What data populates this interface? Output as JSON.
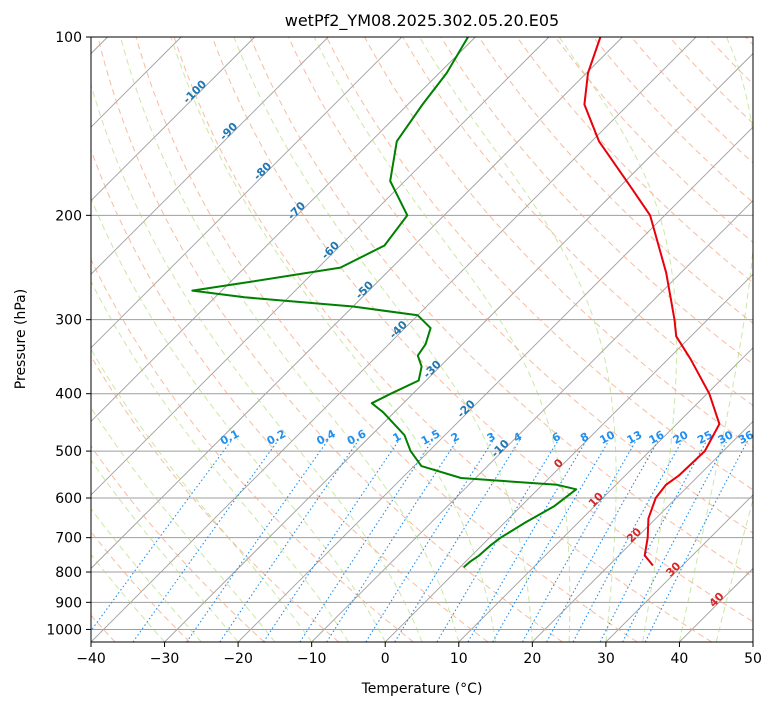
{
  "chart_data": {
    "type": "line",
    "title": "wetPf2_YM08.2025.302.05.20.E05",
    "xlabel": "Temperature (°C)",
    "ylabel": "Pressure (hPa)",
    "xlim": [
      -40,
      50
    ],
    "ylim": [
      1050,
      100
    ],
    "y_scale": "log",
    "skew": true,
    "grid": true,
    "x_ticks": [
      -40,
      -30,
      -20,
      -10,
      0,
      10,
      20,
      30,
      40,
      50
    ],
    "y_ticks": [
      100,
      200,
      300,
      400,
      500,
      600,
      700,
      800,
      900,
      1000
    ],
    "series": [
      {
        "color": "#e8000b",
        "points": [
          [
            780,
            26.0
          ],
          [
            750,
            23.5
          ],
          [
            700,
            21.5
          ],
          [
            650,
            19.0
          ],
          [
            600,
            17.2
          ],
          [
            570,
            16.8
          ],
          [
            550,
            17.3
          ],
          [
            500,
            17.5
          ],
          [
            450,
            15.8
          ],
          [
            400,
            10.3
          ],
          [
            350,
            3.1
          ],
          [
            320,
            -2.0
          ],
          [
            300,
            -4.5
          ],
          [
            250,
            -12.0
          ],
          [
            200,
            -22.0
          ],
          [
            180,
            -28.2
          ],
          [
            150,
            -39.0
          ],
          [
            130,
            -46.0
          ],
          [
            115,
            -49.8
          ],
          [
            100,
            -53.0
          ]
        ]
      },
      {
        "color": "#008000",
        "points": [
          [
            785,
            0.5
          ],
          [
            770,
            0.6
          ],
          [
            750,
            1.0
          ],
          [
            720,
            1.2
          ],
          [
            700,
            1.5
          ],
          [
            660,
            2.8
          ],
          [
            620,
            4.5
          ],
          [
            580,
            5.2
          ],
          [
            570,
            2.0
          ],
          [
            555,
            -12.0
          ],
          [
            530,
            -19.0
          ],
          [
            500,
            -22.5
          ],
          [
            470,
            -25.5
          ],
          [
            430,
            -31.5
          ],
          [
            415,
            -34.3
          ],
          [
            400,
            -33.0
          ],
          [
            380,
            -31.0
          ],
          [
            360,
            -32.5
          ],
          [
            345,
            -34.5
          ],
          [
            330,
            -35.0
          ],
          [
            310,
            -36.5
          ],
          [
            295,
            -40.0
          ],
          [
            285,
            -50.0
          ],
          [
            275,
            -66.0
          ],
          [
            268,
            -74.0
          ],
          [
            260,
            -68.0
          ],
          [
            245,
            -57.0
          ],
          [
            225,
            -54.0
          ],
          [
            200,
            -55.0
          ],
          [
            175,
            -62.0
          ],
          [
            150,
            -66.5
          ],
          [
            130,
            -68.0
          ],
          [
            115,
            -69.0
          ],
          [
            100,
            -71.0
          ]
        ]
      }
    ],
    "dry_adiabat_labels": [
      "-100",
      "-90",
      "-80",
      "-70",
      "-60",
      "-50",
      "-40",
      "-30",
      "-20",
      "-10"
    ],
    "moist_adiabat_labels": [
      "0",
      "10",
      "20",
      "30",
      "40"
    ],
    "mixing_ratio_labels": [
      "0.1",
      "0.2",
      "0.4",
      "0.6",
      "1",
      "1.5",
      "2",
      "3",
      "4",
      "6",
      "8",
      "10",
      "13",
      "16",
      "20",
      "25",
      "30",
      "36"
    ],
    "colors": {
      "temperature": "#e8000b",
      "dewpoint": "#008000",
      "isotherm": "#9e9e9e",
      "isobar": "#9e9e9e",
      "dry_adiabat": "#f4a582",
      "moist_adiabat": "#a6d96a",
      "mixing_ratio": "#1f8ff0",
      "dry_label": "#1f77b4",
      "moist_label": "#d62728",
      "mixing_label": "#1f8ff0"
    }
  }
}
